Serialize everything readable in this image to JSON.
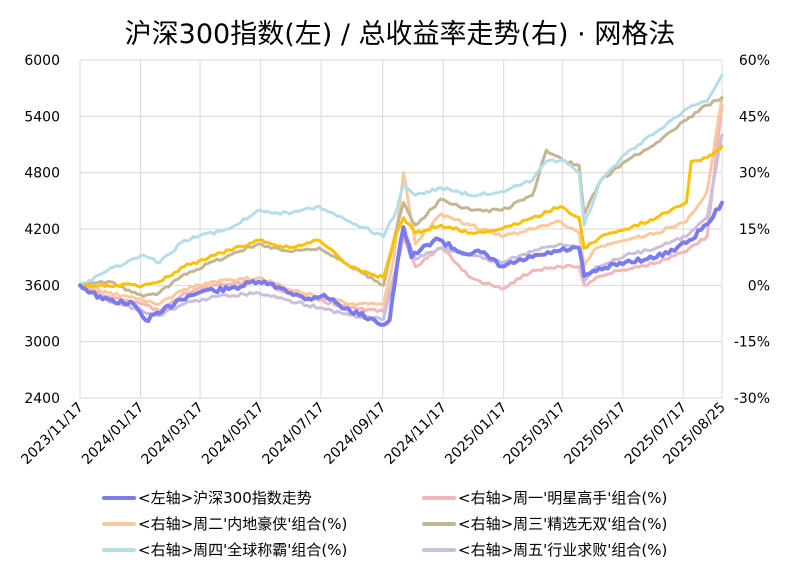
{
  "chart_data": {
    "type": "line",
    "title": "沪深300指数(左)  /  总收益率走势(右) · 网格法",
    "left_axis": {
      "ylim": [
        2400,
        6000
      ],
      "ticks": [
        "6000",
        "5400",
        "4800",
        "4200",
        "3600",
        "3000",
        "2400"
      ]
    },
    "right_axis": {
      "ylim": [
        -30,
        60
      ],
      "ticks": [
        "60%",
        "45%",
        "30%",
        "15%",
        "0%",
        "-15%",
        "-30%"
      ],
      "negative_color": "#00cc00"
    },
    "x_ticks": [
      "2023/11/17",
      "2024/01/17",
      "2024/03/17",
      "2024/05/17",
      "2024/07/17",
      "2024/09/17",
      "2024/11/17",
      "2025/01/17",
      "2025/03/17",
      "2025/05/17",
      "2025/07/17",
      "2025/08/25"
    ],
    "last_x_tick_color": "#ff0000",
    "x_range": [
      "2023-11-17",
      "2025-08-25"
    ],
    "grid": "horizontal",
    "legend_position": "bottom",
    "series": [
      {
        "name": "<左轴>沪深300指数走势",
        "axis": "left",
        "color": "#7b7bf0",
        "width": 4,
        "points": [
          [
            "2023-11-17",
            3600
          ],
          [
            "2023-12-10",
            3450
          ],
          [
            "2024-01-10",
            3400
          ],
          [
            "2024-01-22",
            3230
          ],
          [
            "2024-02-05",
            3300
          ],
          [
            "2024-02-25",
            3450
          ],
          [
            "2024-03-20",
            3540
          ],
          [
            "2024-04-15",
            3560
          ],
          [
            "2024-05-15",
            3640
          ],
          [
            "2024-06-10",
            3560
          ],
          [
            "2024-07-01",
            3450
          ],
          [
            "2024-07-20",
            3500
          ],
          [
            "2024-08-10",
            3350
          ],
          [
            "2024-09-05",
            3250
          ],
          [
            "2024-09-18",
            3180
          ],
          [
            "2024-09-24",
            3230
          ],
          [
            "2024-10-02",
            3850
          ],
          [
            "2024-10-08",
            4220
          ],
          [
            "2024-10-16",
            3900
          ],
          [
            "2024-11-10",
            4100
          ],
          [
            "2024-12-05",
            3950
          ],
          [
            "2024-12-25",
            3950
          ],
          [
            "2025-01-15",
            3800
          ],
          [
            "2025-02-15",
            3900
          ],
          [
            "2025-03-15",
            3970
          ],
          [
            "2025-04-03",
            4000
          ],
          [
            "2025-04-08",
            3700
          ],
          [
            "2025-04-20",
            3750
          ],
          [
            "2025-05-20",
            3850
          ],
          [
            "2025-06-20",
            3900
          ],
          [
            "2025-07-20",
            4050
          ],
          [
            "2025-08-10",
            4250
          ],
          [
            "2025-08-25",
            4480
          ]
        ]
      },
      {
        "name": "<右轴>周一'明星高手'组合(%)",
        "axis": "right",
        "color": "#f2b8b8",
        "width": 3,
        "points": [
          [
            "2023-11-17",
            0
          ],
          [
            "2023-12-15",
            -3
          ],
          [
            "2024-01-20",
            -5
          ],
          [
            "2024-02-05",
            -7
          ],
          [
            "2024-03-01",
            -2
          ],
          [
            "2024-04-01",
            0
          ],
          [
            "2024-05-15",
            1
          ],
          [
            "2024-06-15",
            -2
          ],
          [
            "2024-07-15",
            -4
          ],
          [
            "2024-08-15",
            -6
          ],
          [
            "2024-09-18",
            -7
          ],
          [
            "2024-10-01",
            5
          ],
          [
            "2024-10-08",
            13
          ],
          [
            "2024-10-20",
            5
          ],
          [
            "2024-11-15",
            10
          ],
          [
            "2024-12-15",
            2
          ],
          [
            "2025-01-05",
            0
          ],
          [
            "2025-01-15",
            -1
          ],
          [
            "2025-02-15",
            4
          ],
          [
            "2025-03-15",
            5
          ],
          [
            "2025-04-03",
            5
          ],
          [
            "2025-04-08",
            0
          ],
          [
            "2025-04-20",
            2
          ],
          [
            "2025-05-15",
            4
          ],
          [
            "2025-06-20",
            6
          ],
          [
            "2025-07-20",
            9
          ],
          [
            "2025-08-10",
            13
          ],
          [
            "2025-08-25",
            48
          ]
        ]
      },
      {
        "name": "<右轴>周二'内地豪侠'组合(%)",
        "axis": "right",
        "color": "#fcc99c",
        "width": 3,
        "points": [
          [
            "2023-11-17",
            0
          ],
          [
            "2023-12-15",
            -2
          ],
          [
            "2024-01-20",
            -4
          ],
          [
            "2024-02-05",
            -5
          ],
          [
            "2024-03-01",
            -1
          ],
          [
            "2024-04-01",
            1
          ],
          [
            "2024-05-15",
            2
          ],
          [
            "2024-06-15",
            -1
          ],
          [
            "2024-07-15",
            -3
          ],
          [
            "2024-08-15",
            -5
          ],
          [
            "2024-09-18",
            -5
          ],
          [
            "2024-09-28",
            7
          ],
          [
            "2024-10-08",
            30
          ],
          [
            "2024-10-20",
            11
          ],
          [
            "2024-11-15",
            19
          ],
          [
            "2024-12-15",
            16
          ],
          [
            "2025-01-15",
            13
          ],
          [
            "2025-02-15",
            15
          ],
          [
            "2025-03-15",
            17
          ],
          [
            "2025-04-03",
            14
          ],
          [
            "2025-04-08",
            5
          ],
          [
            "2025-04-20",
            10
          ],
          [
            "2025-05-20",
            12
          ],
          [
            "2025-06-20",
            14
          ],
          [
            "2025-07-20",
            17
          ],
          [
            "2025-08-10",
            25
          ],
          [
            "2025-08-25",
            50
          ]
        ]
      },
      {
        "name": "<右轴>周三'精选无双'组合(%)",
        "axis": "right",
        "color": "#c4b692",
        "width": 3,
        "points": [
          [
            "2023-11-17",
            0
          ],
          [
            "2023-12-15",
            1
          ],
          [
            "2024-01-20",
            -3
          ],
          [
            "2024-02-05",
            -2
          ],
          [
            "2024-03-01",
            3
          ],
          [
            "2024-04-15",
            8
          ],
          [
            "2024-05-15",
            11
          ],
          [
            "2024-06-15",
            9
          ],
          [
            "2024-07-15",
            10
          ],
          [
            "2024-08-15",
            5
          ],
          [
            "2024-09-18",
            0
          ],
          [
            "2024-10-01",
            15
          ],
          [
            "2024-10-08",
            22
          ],
          [
            "2024-10-20",
            16
          ],
          [
            "2024-11-15",
            23
          ],
          [
            "2024-12-15",
            20
          ],
          [
            "2025-01-15",
            20
          ],
          [
            "2025-02-15",
            24
          ],
          [
            "2025-03-01",
            36
          ],
          [
            "2025-03-20",
            33
          ],
          [
            "2025-04-03",
            32
          ],
          [
            "2025-04-08",
            19
          ],
          [
            "2025-04-25",
            28
          ],
          [
            "2025-05-20",
            33
          ],
          [
            "2025-06-20",
            38
          ],
          [
            "2025-07-20",
            44
          ],
          [
            "2025-08-10",
            48
          ],
          [
            "2025-08-25",
            50
          ]
        ]
      },
      {
        "name": "<右轴>周四'全球称霸'组合(%)",
        "axis": "right",
        "color": "#b7dde8",
        "width": 3,
        "points": [
          [
            "2023-11-17",
            0
          ],
          [
            "2023-12-15",
            4
          ],
          [
            "2024-01-20",
            8
          ],
          [
            "2024-02-05",
            6
          ],
          [
            "2024-03-01",
            12
          ],
          [
            "2024-04-15",
            15
          ],
          [
            "2024-05-15",
            20
          ],
          [
            "2024-06-15",
            19
          ],
          [
            "2024-07-15",
            21
          ],
          [
            "2024-08-15",
            17
          ],
          [
            "2024-09-18",
            13
          ],
          [
            "2024-10-01",
            20
          ],
          [
            "2024-10-08",
            27
          ],
          [
            "2024-10-20",
            24
          ],
          [
            "2024-11-15",
            26
          ],
          [
            "2024-12-15",
            24
          ],
          [
            "2025-01-15",
            25
          ],
          [
            "2025-02-15",
            28
          ],
          [
            "2025-03-01",
            33
          ],
          [
            "2025-03-20",
            33
          ],
          [
            "2025-04-03",
            30
          ],
          [
            "2025-04-08",
            16
          ],
          [
            "2025-04-25",
            28
          ],
          [
            "2025-05-20",
            35
          ],
          [
            "2025-06-20",
            41
          ],
          [
            "2025-07-20",
            47
          ],
          [
            "2025-08-10",
            49
          ],
          [
            "2025-08-25",
            56
          ]
        ]
      },
      {
        "name": "<右轴>周五'行业求败'组合(%)",
        "axis": "right",
        "color": "#cbbfdc",
        "width": 3,
        "points": [
          [
            "2023-11-17",
            0
          ],
          [
            "2023-12-15",
            -4
          ],
          [
            "2024-01-20",
            -7
          ],
          [
            "2024-02-05",
            -8
          ],
          [
            "2024-03-01",
            -5
          ],
          [
            "2024-04-01",
            -3
          ],
          [
            "2024-05-15",
            -2
          ],
          [
            "2024-06-15",
            -4
          ],
          [
            "2024-07-15",
            -6
          ],
          [
            "2024-08-15",
            -8
          ],
          [
            "2024-09-18",
            -9
          ],
          [
            "2024-10-01",
            5
          ],
          [
            "2024-10-08",
            15
          ],
          [
            "2024-10-20",
            7
          ],
          [
            "2024-11-15",
            10
          ],
          [
            "2024-12-15",
            8
          ],
          [
            "2025-01-15",
            6
          ],
          [
            "2025-02-15",
            9
          ],
          [
            "2025-03-15",
            11
          ],
          [
            "2025-04-03",
            10
          ],
          [
            "2025-04-08",
            1
          ],
          [
            "2025-04-20",
            5
          ],
          [
            "2025-05-20",
            8
          ],
          [
            "2025-06-20",
            10
          ],
          [
            "2025-07-20",
            13
          ],
          [
            "2025-08-10",
            18
          ],
          [
            "2025-08-25",
            40
          ]
        ]
      },
      {
        "name": "",
        "axis": "right",
        "color": "#ffc000",
        "width": 3,
        "points": [
          [
            "2023-11-17",
            0
          ],
          [
            "2023-12-15",
            0
          ],
          [
            "2024-01-20",
            0
          ],
          [
            "2024-02-05",
            1
          ],
          [
            "2024-03-01",
            5
          ],
          [
            "2024-04-01",
            8
          ],
          [
            "2024-05-15",
            12
          ],
          [
            "2024-06-15",
            10
          ],
          [
            "2024-07-15",
            12
          ],
          [
            "2024-08-15",
            5
          ],
          [
            "2024-09-18",
            2
          ],
          [
            "2024-10-01",
            14
          ],
          [
            "2024-10-08",
            18
          ],
          [
            "2024-10-20",
            14
          ],
          [
            "2024-11-15",
            16
          ],
          [
            "2024-12-15",
            14
          ],
          [
            "2025-01-15",
            15
          ],
          [
            "2025-02-15",
            18
          ],
          [
            "2025-03-15",
            21
          ],
          [
            "2025-04-03",
            18
          ],
          [
            "2025-04-08",
            10
          ],
          [
            "2025-04-25",
            13
          ],
          [
            "2025-05-20",
            15
          ],
          [
            "2025-06-20",
            18
          ],
          [
            "2025-07-20",
            22
          ],
          [
            "2025-07-25",
            33
          ],
          [
            "2025-08-10",
            34
          ],
          [
            "2025-08-25",
            37
          ]
        ]
      }
    ]
  }
}
